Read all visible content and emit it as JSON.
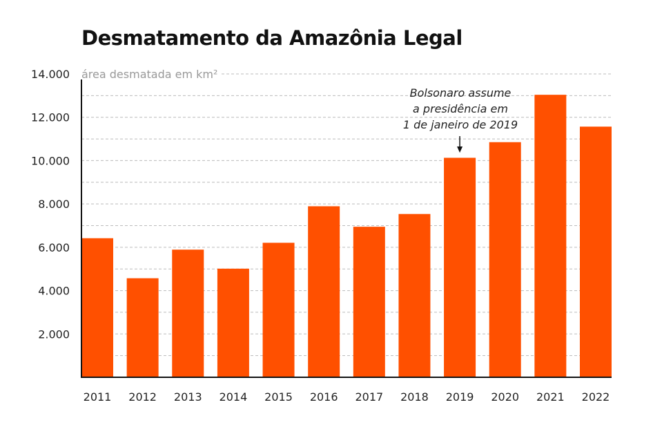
{
  "chart_data": {
    "type": "bar",
    "title": "Desmatamento da Amazônia Legal",
    "ylabel": "área desmatada em km²",
    "xlabel": "",
    "categories": [
      "2011",
      "2012",
      "2013",
      "2014",
      "2015",
      "2016",
      "2017",
      "2018",
      "2019",
      "2020",
      "2021",
      "2022"
    ],
    "values": [
      6418,
      4571,
      5891,
      5012,
      6207,
      7893,
      6947,
      7536,
      10129,
      10851,
      13038,
      11568
    ],
    "ylim": [
      0,
      14000
    ],
    "yticks": [
      "2.000",
      "4.000",
      "6.000",
      "8.000",
      "10.000",
      "12.000",
      "14.000"
    ],
    "grid": "dashed horizontal lines every 1.000",
    "bar_color": "#ff5000",
    "annotation": {
      "category": "2019",
      "lines": [
        "Bolsonaro assume",
        "a presidência em",
        "1 de janeiro de 2019"
      ]
    }
  }
}
